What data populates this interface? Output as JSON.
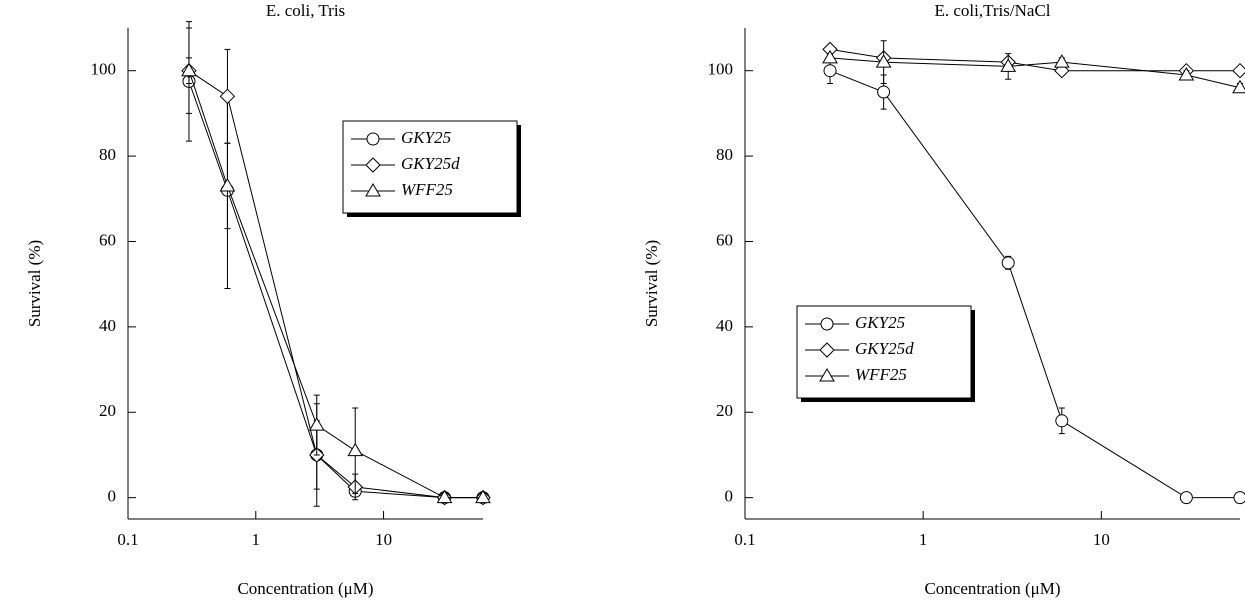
{
  "chart_data": [
    {
      "type": "line",
      "title": "E. coli, Tris",
      "x_label": "Concentration (μM)",
      "y_label": "Survival (%)",
      "log_x": true,
      "xlim": [
        0.1,
        60
      ],
      "ylim": [
        -5,
        110
      ],
      "xticks": [
        0.1,
        1,
        10
      ],
      "yticks": [
        0,
        20,
        40,
        60,
        80,
        100
      ],
      "legend_loc": "upper right",
      "x": [
        0.3,
        0.6,
        3,
        6,
        30,
        60
      ],
      "series": [
        {
          "name": "GKY25",
          "color": "#000000",
          "marker": "circle",
          "values": [
            97.5,
            72,
            10,
            1.5,
            0,
            0
          ],
          "errors": [
            14,
            23,
            12,
            1,
            0,
            0
          ]
        },
        {
          "name": "GKY25d",
          "color": "#000000",
          "marker": "diamond",
          "values": [
            100,
            94,
            10,
            2.5,
            0,
            0
          ],
          "errors": [
            3,
            11,
            8,
            3,
            0,
            0
          ]
        },
        {
          "name": "WFF25",
          "color": "#000000",
          "marker": "triangle",
          "values": [
            100,
            73,
            17,
            11,
            0,
            0
          ],
          "errors": [
            10,
            10,
            7,
            10,
            0,
            0
          ]
        }
      ]
    },
    {
      "type": "line",
      "title": "E. coli,Tris/NaCl",
      "x_label": "Concentration (μM)",
      "y_label": "Survival (%)",
      "log_x": true,
      "xlim": [
        0.1,
        60
      ],
      "ylim": [
        -5,
        110
      ],
      "xticks": [
        0.1,
        1,
        10
      ],
      "yticks": [
        0,
        20,
        40,
        60,
        80,
        100
      ],
      "legend_loc": "center left",
      "x": [
        0.3,
        0.6,
        3,
        6,
        30,
        60
      ],
      "series": [
        {
          "name": "GKY25",
          "color": "#000000",
          "marker": "circle",
          "values": [
            100,
            95,
            55,
            18,
            0,
            0
          ],
          "errors": [
            3,
            4,
            1.5,
            3,
            0,
            0
          ]
        },
        {
          "name": "GKY25d",
          "color": "#000000",
          "marker": "diamond",
          "values": [
            105,
            103,
            102,
            100,
            100,
            100
          ],
          "errors": [
            1,
            1,
            1,
            1,
            1,
            1
          ]
        },
        {
          "name": "WFF25",
          "color": "#000000",
          "marker": "triangle",
          "values": [
            103,
            102,
            101,
            102,
            99,
            96
          ],
          "errors": [
            1,
            5,
            3,
            1,
            1,
            1
          ]
        }
      ]
    }
  ]
}
